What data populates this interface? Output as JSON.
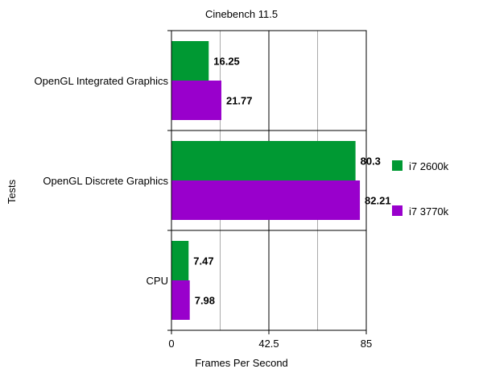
{
  "chart_data": {
    "type": "bar",
    "orientation": "horizontal",
    "title": "Cinebench 11.5",
    "xlabel": "Frames Per Second",
    "ylabel": "Tests",
    "categories": [
      "OpenGL Integrated Graphics",
      "OpenGL Discrete Graphics",
      "CPU"
    ],
    "series": [
      {
        "name": "i7 2600k",
        "values": [
          16.25,
          80.3,
          7.47
        ],
        "color": "#009933"
      },
      {
        "name": "i7 3770k",
        "values": [
          21.77,
          82.21,
          7.98
        ],
        "color": "#9900cc"
      }
    ],
    "xlim": [
      0,
      85
    ],
    "xticks": [
      "0",
      "42.5",
      "85"
    ],
    "data_labels": [
      [
        "16.25",
        "80.3",
        "7.47"
      ],
      [
        "21.77",
        "82.21",
        "7.98"
      ]
    ],
    "legend_position": "right",
    "grid": true
  }
}
